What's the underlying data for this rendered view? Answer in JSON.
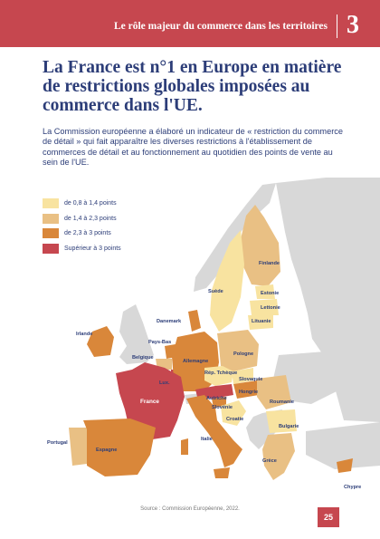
{
  "header": {
    "title": "Le rôle majeur du commerce dans les territoires",
    "chapter": "3"
  },
  "title": "La France est n°1 en Europe en matière de restrictions globales imposées au commerce dans l'UE.",
  "intro": "La Commission européenne a élaboré un indicateur de « restriction du commerce de détail » qui fait apparaître les diverses restrictions à l'établissement de commerces de détail et au fonctionnement au quotidien des points de vente au sein de l'UE.",
  "legend": [
    {
      "label": "de 0,8 à 1,4 points",
      "color": "#f8e3a0"
    },
    {
      "label": "de 1,4 à 2,3 points",
      "color": "#e9c084"
    },
    {
      "label": "de 2,3 à 3 points",
      "color": "#d9873a"
    },
    {
      "label": "Supérieur à 3 points",
      "color": "#c6474f"
    }
  ],
  "colors": {
    "non_eu": "#d8d8d8",
    "header": "#c6474f",
    "text": "#2c3d78"
  },
  "countries": {
    "finlande": "Finlande",
    "suede": "Suède",
    "estonie": "Estonie",
    "lettonie": "Lettonie",
    "lituanie": "Lituanie",
    "danemark": "Danemark",
    "irlande": "Irlande",
    "pays_bas": "Pays-Bas",
    "belgique": "Belgique",
    "lux": "Lux.",
    "allemagne": "Allemagne",
    "pologne": "Pologne",
    "rep_tcheque": "Rép. Tchèque",
    "slovaquie": "Slovaquie",
    "autriche": "Autriche",
    "hongrie": "Hongrie",
    "slovenie": "Slovénie",
    "croatie": "Croatie",
    "roumanie": "Roumanie",
    "bulgarie": "Bulgarie",
    "france": "France",
    "italie": "Italie",
    "portugal": "Portugal",
    "espagne": "Espagne",
    "grece": "Grèce",
    "chypre": "Chypre"
  },
  "source": "Source : Commission Européenne, 2022.",
  "page_number": "25"
}
